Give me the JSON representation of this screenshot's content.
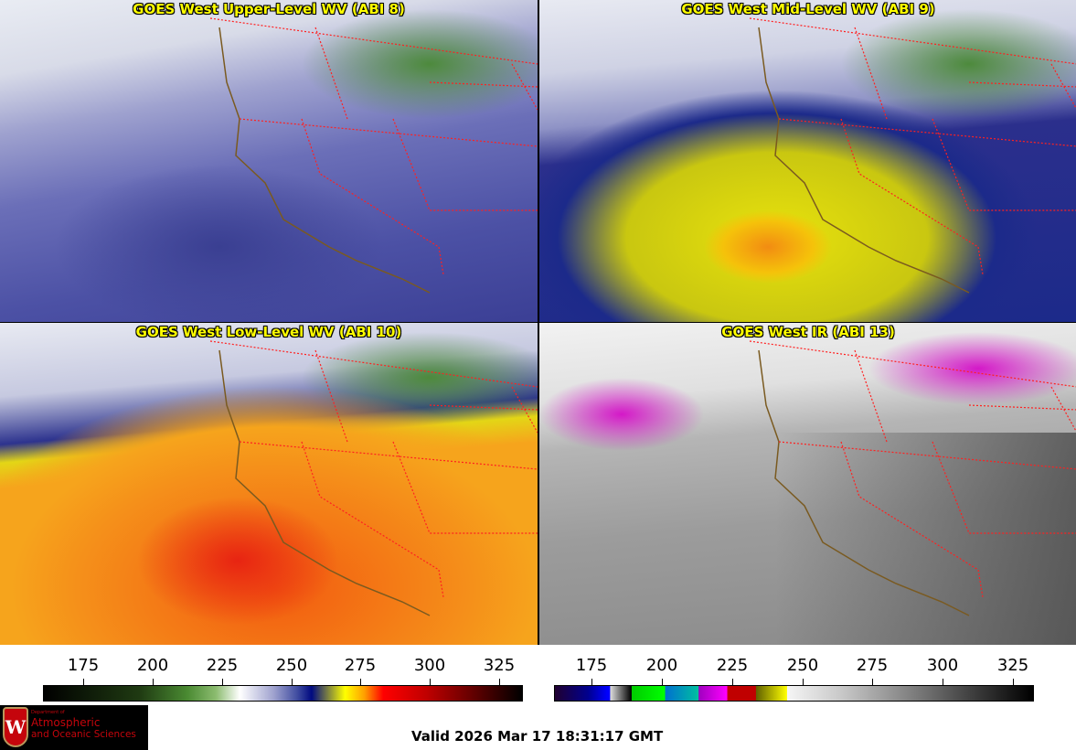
{
  "panels": [
    {
      "title": "GOES West Upper-Level WV (ABI 8)"
    },
    {
      "title": "GOES West Mid-Level WV (ABI 9)"
    },
    {
      "title": "GOES West Low-Level WV (ABI 10)"
    },
    {
      "title": "GOES West IR (ABI 13)"
    }
  ],
  "colorbars": [
    {
      "name": "water-vapor",
      "range": [
        160.5,
        333.5
      ],
      "ticks": [
        "175",
        "200",
        "225",
        "250",
        "275",
        "300",
        "325"
      ]
    },
    {
      "name": "infrared",
      "range": [
        161.5,
        332.5
      ],
      "ticks": [
        "175",
        "200",
        "225",
        "250",
        "275",
        "300",
        "325"
      ]
    }
  ],
  "logo": {
    "line1": "Department of",
    "line2": "Atmospheric",
    "line3": "and Oceanic Sciences",
    "mark": "W"
  },
  "valid_time": "Valid 2026 Mar 17 18:31:17 GMT",
  "colors": {
    "title": "#ffff00",
    "borders": "#ff2020",
    "coast": "#6b4a1a"
  }
}
